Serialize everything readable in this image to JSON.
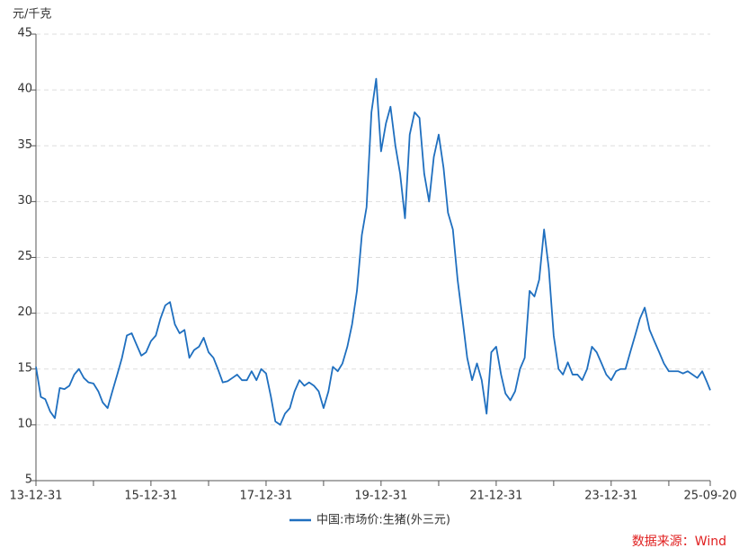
{
  "chart_data": {
    "type": "line",
    "y_label": "元/千克",
    "source": "数据来源：Wind",
    "x": [
      "13-12-31",
      "14-01-31",
      "14-02-28",
      "14-03-31",
      "14-04-30",
      "14-05-31",
      "14-06-30",
      "14-07-31",
      "14-08-31",
      "14-09-30",
      "14-10-31",
      "14-11-30",
      "14-12-31",
      "15-01-31",
      "15-02-28",
      "15-03-31",
      "15-04-30",
      "15-05-31",
      "15-06-30",
      "15-07-31",
      "15-08-31",
      "15-09-30",
      "15-10-31",
      "15-11-30",
      "15-12-31",
      "16-01-31",
      "16-02-29",
      "16-03-31",
      "16-04-30",
      "16-05-31",
      "16-06-30",
      "16-07-31",
      "16-08-31",
      "16-09-30",
      "16-10-31",
      "16-11-30",
      "16-12-31",
      "17-01-31",
      "17-02-28",
      "17-03-31",
      "17-04-30",
      "17-05-31",
      "17-06-30",
      "17-07-31",
      "17-08-31",
      "17-09-30",
      "17-10-31",
      "17-11-30",
      "17-12-31",
      "18-01-31",
      "18-02-28",
      "18-03-31",
      "18-04-30",
      "18-05-31",
      "18-06-30",
      "18-07-31",
      "18-08-31",
      "18-09-30",
      "18-10-31",
      "18-11-30",
      "18-12-31",
      "19-01-31",
      "19-02-28",
      "19-03-31",
      "19-04-30",
      "19-05-31",
      "19-06-30",
      "19-07-31",
      "19-08-31",
      "19-09-30",
      "19-10-31",
      "19-11-30",
      "19-12-31",
      "20-01-31",
      "20-02-29",
      "20-03-31",
      "20-04-30",
      "20-05-31",
      "20-06-30",
      "20-07-31",
      "20-08-31",
      "20-09-30",
      "20-10-31",
      "20-11-30",
      "20-12-31",
      "21-01-31",
      "21-02-28",
      "21-03-31",
      "21-04-30",
      "21-05-31",
      "21-06-30",
      "21-07-31",
      "21-08-31",
      "21-09-30",
      "21-10-31",
      "21-11-30",
      "21-12-31",
      "22-01-31",
      "22-02-28",
      "22-03-31",
      "22-04-30",
      "22-05-31",
      "22-06-30",
      "22-07-31",
      "22-08-31",
      "22-09-30",
      "22-10-31",
      "22-11-30",
      "22-12-31",
      "23-01-31",
      "23-02-28",
      "23-03-31",
      "23-04-30",
      "23-05-31",
      "23-06-30",
      "23-07-31",
      "23-08-31",
      "23-09-30",
      "23-10-31",
      "23-11-30",
      "23-12-31",
      "24-01-31",
      "24-02-29",
      "24-03-31",
      "24-04-30",
      "24-05-31",
      "24-06-30",
      "24-07-31",
      "24-08-31",
      "24-09-30",
      "24-10-31",
      "24-11-30",
      "24-12-31",
      "25-01-31",
      "25-02-28",
      "25-03-31",
      "25-04-30",
      "25-05-31",
      "25-06-30",
      "25-07-31",
      "25-08-31",
      "25-09-20"
    ],
    "series": [
      {
        "name": "中国:市场价:生猪(外三元)",
        "color": "#1f6fbf",
        "values": [
          15.2,
          12.5,
          12.3,
          11.2,
          10.6,
          13.3,
          13.2,
          13.5,
          14.5,
          15.0,
          14.2,
          13.8,
          13.7,
          13.0,
          12.0,
          11.5,
          13.0,
          14.5,
          16.0,
          18.0,
          18.2,
          17.2,
          16.2,
          16.5,
          17.5,
          18.0,
          19.5,
          20.7,
          21.0,
          19.0,
          18.2,
          18.5,
          16.0,
          16.7,
          17.0,
          17.8,
          16.5,
          16.0,
          15.0,
          13.8,
          13.9,
          14.2,
          14.5,
          14.0,
          14.0,
          14.8,
          14.0,
          15.0,
          14.6,
          12.5,
          10.3,
          10.0,
          11.0,
          11.5,
          13.0,
          14.0,
          13.5,
          13.8,
          13.5,
          13.0,
          11.5,
          13.0,
          15.2,
          14.8,
          15.5,
          17.0,
          19.0,
          22.0,
          27.0,
          29.5,
          38.0,
          41.0,
          34.5,
          37.0,
          38.5,
          35.0,
          32.5,
          28.5,
          36.0,
          38.0,
          37.5,
          32.5,
          30.0,
          34.0,
          36.0,
          33.0,
          29.0,
          27.5,
          23.0,
          19.5,
          16.0,
          14.0,
          15.5,
          14.0,
          11.0,
          16.5,
          17.0,
          14.5,
          12.8,
          12.2,
          13.0,
          15.0,
          16.0,
          22.0,
          21.5,
          23.0,
          27.5,
          24.0,
          18.0,
          15.0,
          14.5,
          15.6,
          14.5,
          14.5,
          14.0,
          15.0,
          17.0,
          16.5,
          15.5,
          14.5,
          14.0,
          14.8,
          15.0,
          15.0,
          16.5,
          18.0,
          19.5,
          20.5,
          18.5,
          17.5,
          16.5,
          15.5,
          14.8,
          14.8,
          14.8,
          14.6,
          14.8,
          14.5,
          14.2,
          14.8,
          13.8,
          13.1
        ]
      }
    ],
    "xlim": [
      "13-12-31",
      "25-09-20"
    ],
    "xticks": [
      "13-12-31",
      "15-12-31",
      "17-12-31",
      "19-12-31",
      "21-12-31",
      "23-12-31",
      "25-09-20"
    ],
    "xticks_minor": [
      "14-12-31",
      "16-12-31",
      "18-12-31",
      "20-12-31",
      "22-12-31",
      "24-12-31"
    ],
    "ylim": [
      5,
      45
    ],
    "yticks": [
      5,
      10,
      15,
      20,
      25,
      30,
      35,
      40,
      45
    ],
    "grid": true,
    "legend": "bottom"
  }
}
